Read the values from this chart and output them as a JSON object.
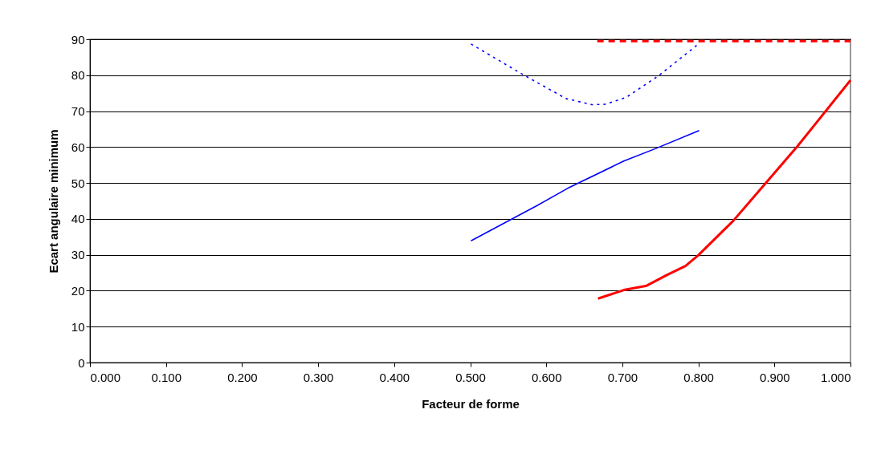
{
  "chart_data": {
    "type": "line",
    "xlabel": "Facteur de forme",
    "ylabel": "Ecart angulaire minimum",
    "xlim": [
      0,
      1
    ],
    "ylim": [
      0,
      90
    ],
    "xticks": [
      {
        "value": 0,
        "label": "0.000"
      },
      {
        "value": 0.1,
        "label": "0.100"
      },
      {
        "value": 0.2,
        "label": "0.200"
      },
      {
        "value": 0.3,
        "label": "0.300"
      },
      {
        "value": 0.4,
        "label": "0.400"
      },
      {
        "value": 0.5,
        "label": "0.500"
      },
      {
        "value": 0.6,
        "label": "0.600"
      },
      {
        "value": 0.7,
        "label": "0.700"
      },
      {
        "value": 0.8,
        "label": "0.800"
      },
      {
        "value": 0.9,
        "label": "0.900"
      },
      {
        "value": 1,
        "label": "1.000"
      }
    ],
    "yticks": [
      0,
      10,
      20,
      30,
      40,
      50,
      60,
      70,
      80,
      90
    ],
    "grid": "y",
    "series": [
      {
        "color": "#ff0000",
        "line_style": "solid",
        "x": [
          0.668,
          0.702,
          0.732,
          0.758,
          0.783,
          0.8,
          0.846,
          0.931,
          1.0
        ],
        "values": [
          17.8,
          20.2,
          21.4,
          24.3,
          26.9,
          29.9,
          39.5,
          60.4,
          78.6
        ]
      },
      {
        "color": "#ff0000",
        "line_style": "dashed",
        "x": [
          0.667,
          1.0
        ],
        "values": [
          89.5,
          89.5
        ]
      },
      {
        "color": "#0000ff",
        "line_style": "solid",
        "x": [
          0.501,
          0.587,
          0.628,
          0.702,
          0.744,
          0.801
        ],
        "values": [
          33.9,
          43.6,
          48.5,
          56.1,
          59.6,
          64.6
        ]
      },
      {
        "color": "#0000ff",
        "line_style": "dotted",
        "x": [
          0.501,
          0.57,
          0.626,
          0.66,
          0.677,
          0.705,
          0.748,
          0.8
        ],
        "values": [
          88.7,
          80.1,
          73.5,
          71.8,
          71.9,
          73.8,
          79.9,
          88.7
        ]
      }
    ]
  }
}
